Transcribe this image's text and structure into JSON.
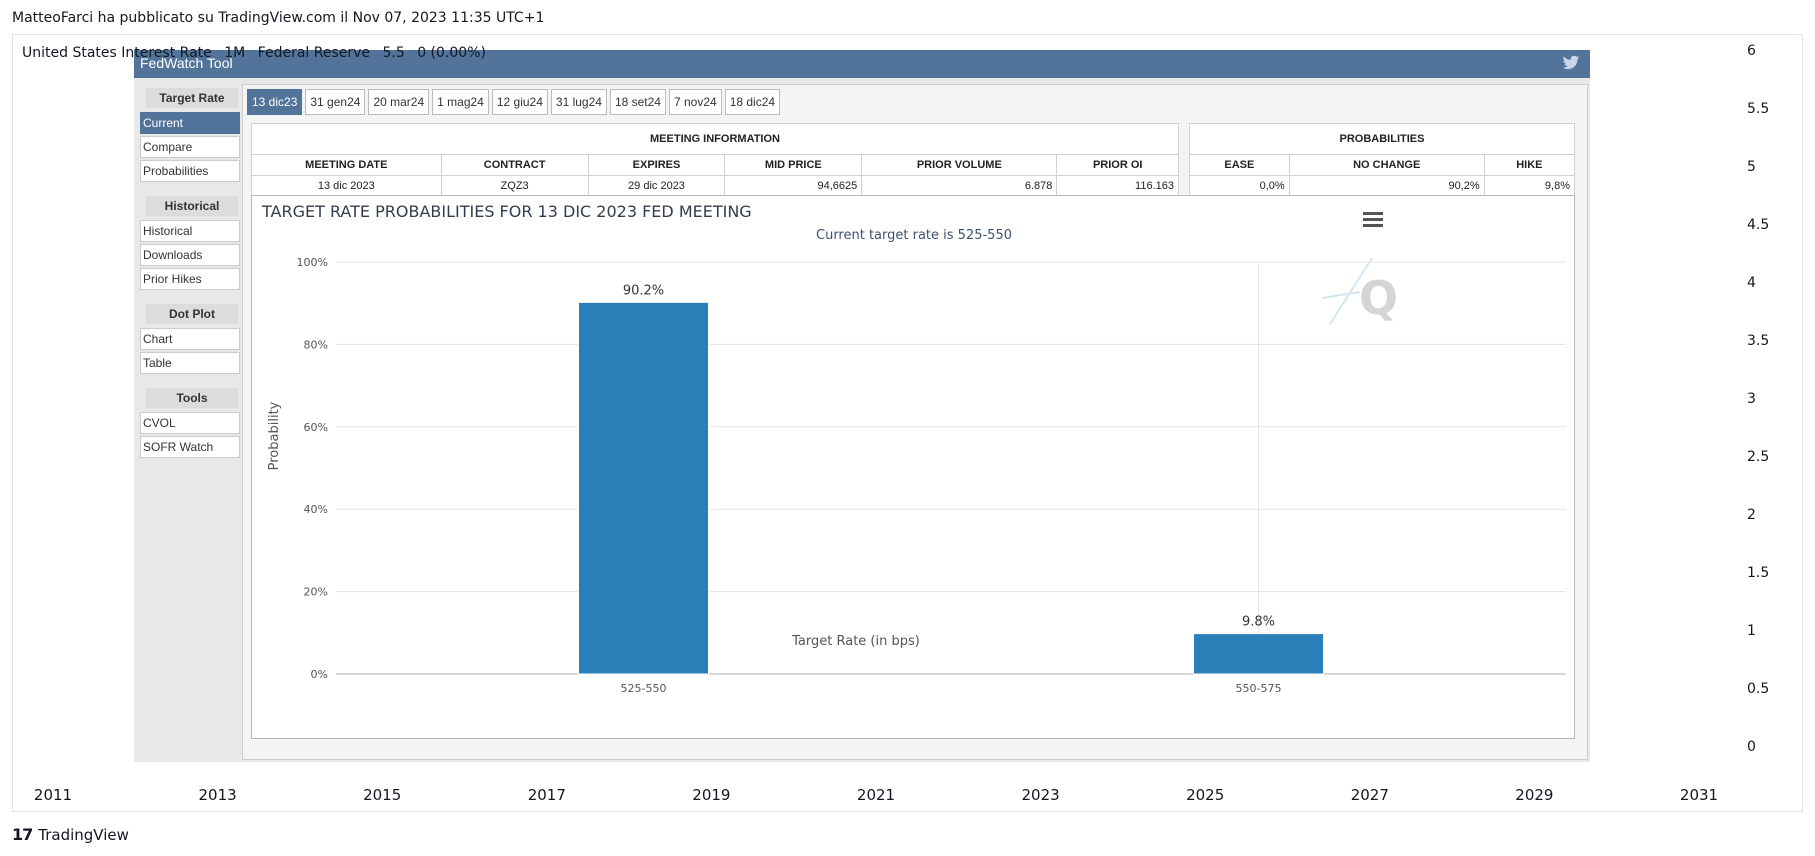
{
  "attribution": "MatteoFarci ha pubblicato su TradingView.com il Nov 07, 2023 11:35 UTC+1",
  "symbol": {
    "name": "United States Interest Rate",
    "interval": "1M",
    "source": "Federal Reserve",
    "value": "5.5",
    "change": "0 (0.00%)"
  },
  "y_axis_ticks": [
    "6",
    "5.5",
    "5",
    "4.5",
    "4",
    "3.5",
    "3",
    "2.5",
    "2",
    "1.5",
    "1",
    "0.5",
    "0"
  ],
  "x_axis_ticks": [
    "2011",
    "2013",
    "2015",
    "2017",
    "2019",
    "2021",
    "2023",
    "2025",
    "2027",
    "2029",
    "2031"
  ],
  "brand": "TradingView",
  "fedwatch": {
    "title": "FedWatch Tool",
    "twitter_icon": "twitter-icon",
    "sidebar": [
      {
        "heading": "Target Rate",
        "items": [
          {
            "label": "Current",
            "active": true
          },
          {
            "label": "Compare"
          },
          {
            "label": "Probabilities"
          }
        ]
      },
      {
        "heading": "Historical",
        "items": [
          {
            "label": "Historical"
          },
          {
            "label": "Downloads"
          },
          {
            "label": "Prior Hikes"
          }
        ]
      },
      {
        "heading": "Dot Plot",
        "items": [
          {
            "label": "Chart"
          },
          {
            "label": "Table"
          }
        ]
      },
      {
        "heading": "Tools",
        "items": [
          {
            "label": "CVOL"
          },
          {
            "label": "SOFR Watch"
          }
        ]
      }
    ],
    "tabs": [
      {
        "label": "13 dic23",
        "active": true
      },
      {
        "label": "31 gen24"
      },
      {
        "label": "20 mar24"
      },
      {
        "label": "1 mag24"
      },
      {
        "label": "12 giu24"
      },
      {
        "label": "31 lug24"
      },
      {
        "label": "18 set24"
      },
      {
        "label": "7 nov24"
      },
      {
        "label": "18 dic24"
      }
    ],
    "meeting_info": {
      "title": "MEETING INFORMATION",
      "columns": [
        "MEETING DATE",
        "CONTRACT",
        "EXPIRES",
        "MID PRICE",
        "PRIOR VOLUME",
        "PRIOR OI"
      ],
      "row": [
        "13 dic 2023",
        "ZQZ3",
        "29 dic 2023",
        "94,6625",
        "6.878",
        "116.163"
      ]
    },
    "probabilities": {
      "title": "PROBABILITIES",
      "columns": [
        "EASE",
        "NO CHANGE",
        "HIKE"
      ],
      "row": [
        "0,0%",
        "90,2%",
        "9,8%"
      ]
    },
    "chart_title": "TARGET RATE PROBABILITIES FOR 13 DIC 2023 FED MEETING",
    "chart_subtitle": "Current target rate is 525-550"
  },
  "chart_data": {
    "type": "bar",
    "title": "TARGET RATE PROBABILITIES FOR 13 DIC 2023 FED MEETING",
    "subtitle": "Current target rate is 525-550",
    "categories": [
      "525-550",
      "550-575"
    ],
    "values": [
      90.2,
      9.8
    ],
    "data_labels": [
      "90.2%",
      "9.8%"
    ],
    "xlabel": "Target Rate (in bps)",
    "ylabel": "Probability",
    "ylim": [
      0,
      100
    ],
    "yticks": [
      "0%",
      "20%",
      "40%",
      "60%",
      "80%",
      "100%"
    ],
    "grid": true,
    "bar_color": "#2a7fb8"
  }
}
